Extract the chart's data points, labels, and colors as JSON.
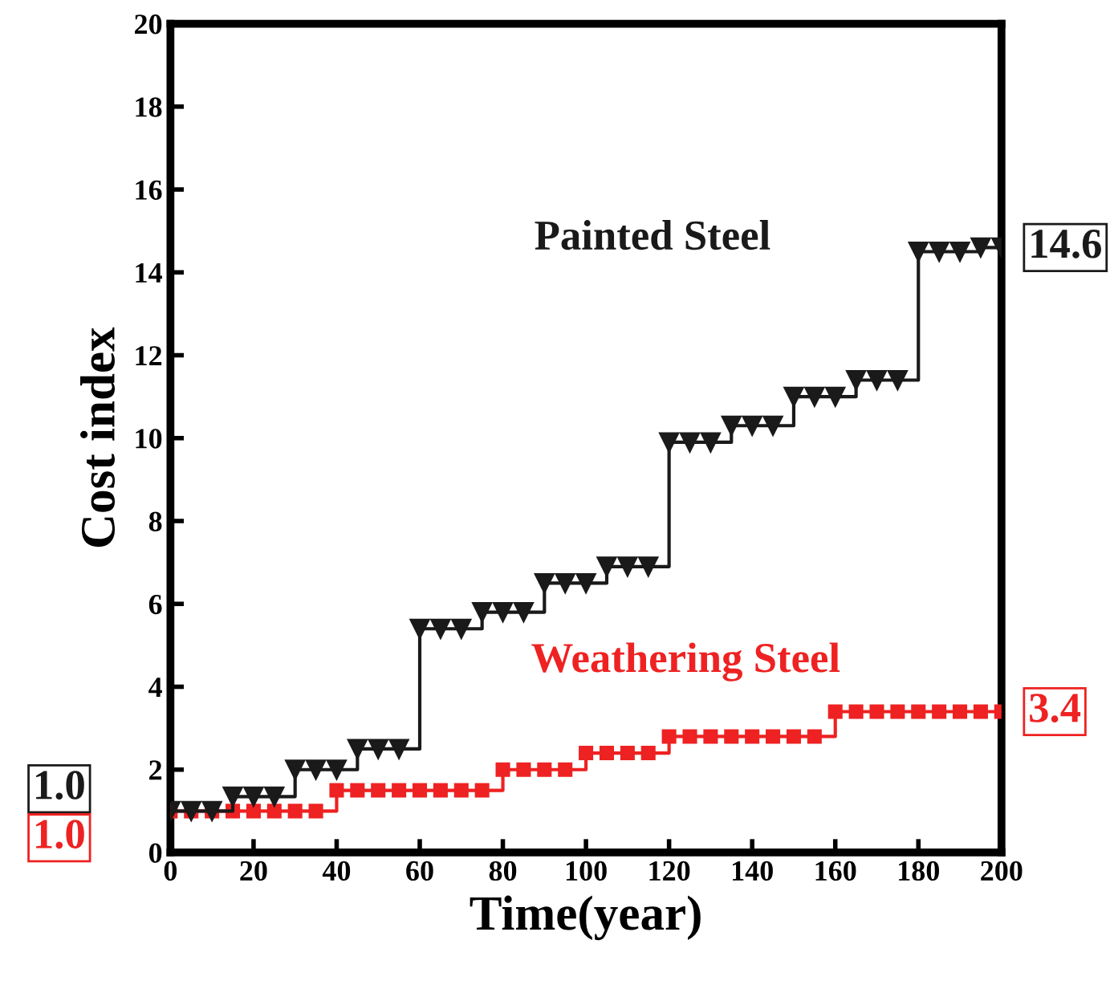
{
  "chart_data": {
    "type": "step",
    "xlabel": "Time(year)",
    "ylabel": "Cost index",
    "x": [
      0,
      5,
      10,
      15,
      20,
      25,
      30,
      35,
      40,
      45,
      50,
      55,
      60,
      65,
      70,
      75,
      80,
      85,
      90,
      95,
      100,
      105,
      110,
      115,
      120,
      125,
      130,
      135,
      140,
      145,
      150,
      155,
      160,
      165,
      170,
      175,
      180,
      185,
      190,
      195,
      200
    ],
    "series": [
      {
        "name": "Painted Steel",
        "color": "#1a1a1a",
        "marker": "triangle",
        "values": [
          1.0,
          1.0,
          1.0,
          1.35,
          1.35,
          1.35,
          2.0,
          2.0,
          2.0,
          2.5,
          2.5,
          2.5,
          5.4,
          5.4,
          5.4,
          5.8,
          5.8,
          5.8,
          6.5,
          6.5,
          6.5,
          6.9,
          6.9,
          6.9,
          9.9,
          9.9,
          9.9,
          10.3,
          10.3,
          10.3,
          11.0,
          11.0,
          11.0,
          11.4,
          11.4,
          11.4,
          14.5,
          14.5,
          14.5,
          14.6,
          14.6
        ],
        "value_labels": [
          "1.0",
          null,
          null,
          null,
          null,
          null,
          null,
          null,
          null,
          null,
          null,
          null,
          null,
          null,
          null,
          null,
          null,
          null,
          null,
          null,
          null,
          null,
          null,
          null,
          null,
          null,
          null,
          null,
          null,
          null,
          null,
          null,
          null,
          null,
          null,
          null,
          null,
          null,
          null,
          null,
          "14.6"
        ]
      },
      {
        "name": "Weathering Steel",
        "color": "#ee2222",
        "marker": "square",
        "values": [
          1.0,
          1.0,
          1.0,
          1.0,
          1.0,
          1.0,
          1.0,
          1.0,
          1.5,
          1.5,
          1.5,
          1.5,
          1.5,
          1.5,
          1.5,
          1.5,
          2.0,
          2.0,
          2.0,
          2.0,
          2.4,
          2.4,
          2.4,
          2.4,
          2.8,
          2.8,
          2.8,
          2.8,
          2.8,
          2.8,
          2.8,
          2.8,
          3.4,
          3.4,
          3.4,
          3.4,
          3.4,
          3.4,
          3.4,
          3.4,
          3.4
        ],
        "value_labels": [
          "1.0",
          null,
          null,
          null,
          null,
          null,
          null,
          null,
          null,
          null,
          null,
          null,
          null,
          null,
          null,
          null,
          null,
          null,
          null,
          null,
          null,
          null,
          null,
          null,
          null,
          null,
          null,
          null,
          null,
          null,
          null,
          null,
          null,
          null,
          null,
          null,
          null,
          null,
          null,
          null,
          "3.4"
        ]
      }
    ],
    "xlim": [
      0,
      200
    ],
    "xticks": [
      0,
      20,
      40,
      60,
      80,
      100,
      120,
      140,
      160,
      180,
      200
    ],
    "ylim": [
      0,
      20
    ],
    "yticks": [
      0,
      2,
      4,
      6,
      8,
      10,
      12,
      14,
      16,
      18,
      20
    ],
    "grid": false,
    "legend": false
  }
}
